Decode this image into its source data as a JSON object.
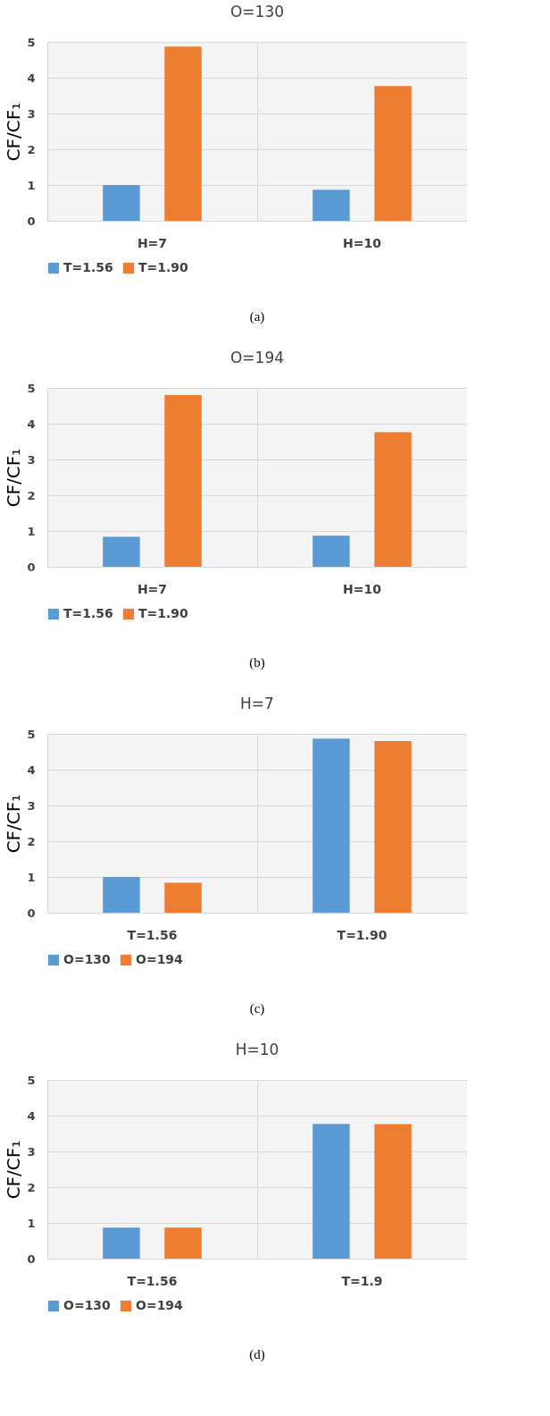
{
  "chart_data": [
    {
      "type": "bar",
      "title": "O=130",
      "ylabel": "CF/CF₁",
      "categories": [
        "H=7",
        "H=10"
      ],
      "ylim": [
        0,
        5
      ],
      "yticks": [
        0,
        1,
        2,
        3,
        4,
        5
      ],
      "grid": true,
      "legend": "bottom",
      "annotations": [
        "(a)"
      ],
      "series": [
        {
          "name": "T=1.56",
          "color": "#5b9bd5",
          "values": [
            1.0,
            0.87
          ]
        },
        {
          "name": "T=1.90",
          "color": "#ed7d31",
          "values": [
            4.87,
            3.77
          ]
        }
      ]
    },
    {
      "type": "bar",
      "title": "O=194",
      "ylabel": "CF/CF₁",
      "categories": [
        "H=7",
        "H=10"
      ],
      "ylim": [
        0,
        5
      ],
      "yticks": [
        0,
        1,
        2,
        3,
        4,
        5
      ],
      "grid": true,
      "legend": "bottom",
      "annotations": [
        "(b)"
      ],
      "series": [
        {
          "name": "T=1.56",
          "color": "#5b9bd5",
          "values": [
            0.84,
            0.87
          ]
        },
        {
          "name": "T=1.90",
          "color": "#ed7d31",
          "values": [
            4.8,
            3.76
          ]
        }
      ]
    },
    {
      "type": "bar",
      "title": "H=7",
      "ylabel": "CF/CF₁",
      "categories": [
        "T=1.56",
        "T=1.90"
      ],
      "ylim": [
        0,
        5
      ],
      "yticks": [
        0,
        1,
        2,
        3,
        4,
        5
      ],
      "grid": true,
      "legend": "bottom",
      "annotations": [
        "(c)"
      ],
      "series": [
        {
          "name": "O=130",
          "color": "#5b9bd5",
          "values": [
            1.0,
            4.87
          ]
        },
        {
          "name": "O=194",
          "color": "#ed7d31",
          "values": [
            0.84,
            4.8
          ]
        }
      ]
    },
    {
      "type": "bar",
      "title": "H=10",
      "ylabel": "CF/CF₁",
      "categories": [
        "T=1.56",
        "T=1.9"
      ],
      "ylim": [
        0,
        5
      ],
      "yticks": [
        0,
        1,
        2,
        3,
        4,
        5
      ],
      "grid": true,
      "legend": "bottom",
      "annotations": [
        "(d)"
      ],
      "series": [
        {
          "name": "O=130",
          "color": "#5b9bd5",
          "values": [
            0.87,
            3.77
          ]
        },
        {
          "name": "O=194",
          "color": "#ed7d31",
          "values": [
            0.87,
            3.76
          ]
        }
      ]
    }
  ]
}
